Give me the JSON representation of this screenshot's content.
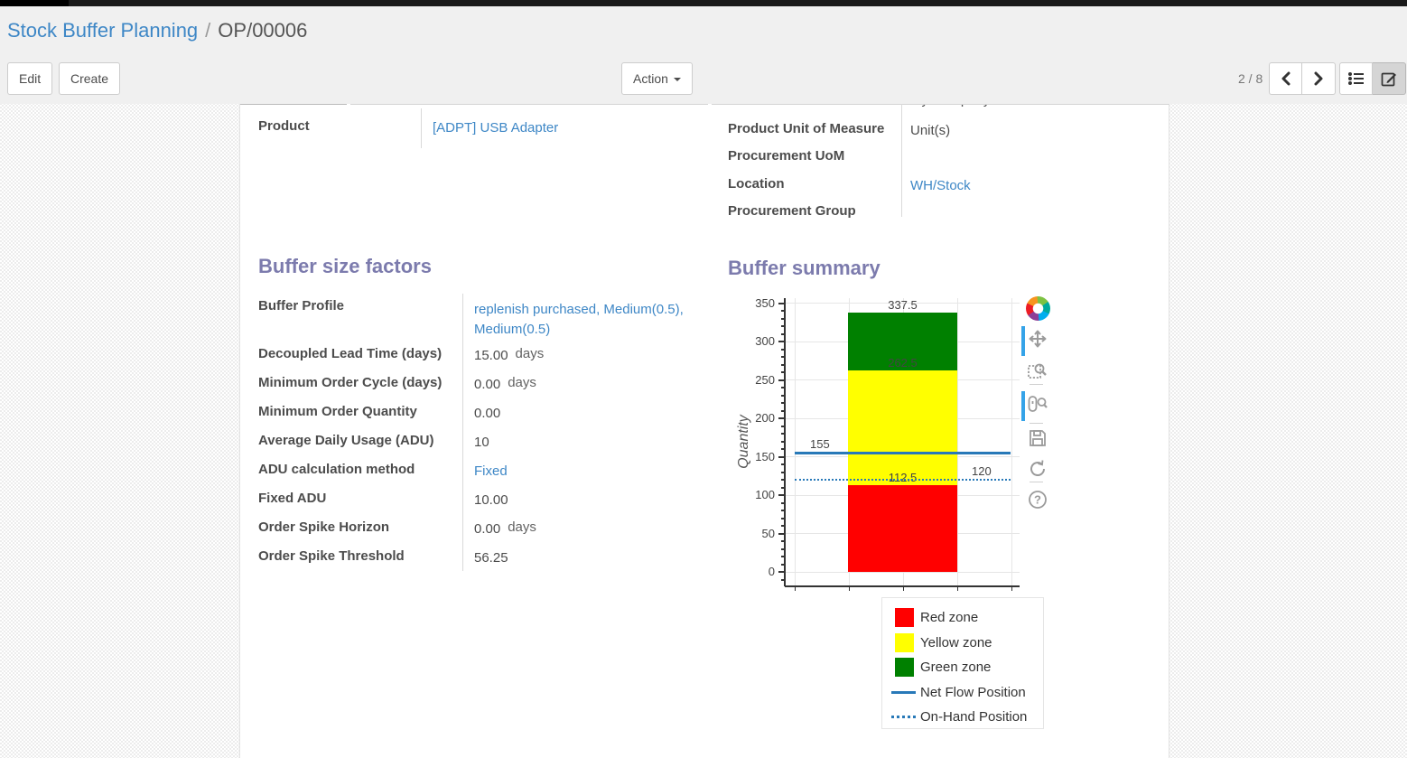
{
  "breadcrumb": {
    "parent": "Stock Buffer Planning",
    "separator": "/",
    "current": "OP/00006"
  },
  "controls": {
    "edit": "Edit",
    "create": "Create",
    "action": "Action",
    "pager": "2 / 8"
  },
  "clipped_row": {
    "value": "My Company"
  },
  "product_field": {
    "label": "Product",
    "value": "[ADPT] USB Adapter"
  },
  "right_fields": [
    {
      "label": "Product Unit of Measure",
      "value": "Unit(s)",
      "link": false
    },
    {
      "label": "Procurement UoM",
      "value": "",
      "link": false
    },
    {
      "label": "Location",
      "value": "WH/Stock",
      "link": true
    },
    {
      "label": "Procurement Group",
      "value": "",
      "link": false
    }
  ],
  "sections": {
    "factors": "Buffer size factors",
    "summary": "Buffer summary"
  },
  "factor_fields": [
    {
      "label": "Buffer Profile",
      "value": "replenish purchased, Medium(0.5), Medium(0.5)",
      "link": true
    },
    {
      "label": "Decoupled Lead Time (days)",
      "value": "15.00",
      "suffix": "days"
    },
    {
      "label": "Minimum Order Cycle (days)",
      "value": "0.00",
      "suffix": "days"
    },
    {
      "label": "Minimum Order Quantity",
      "value": "0.00"
    },
    {
      "label": "Average Daily Usage (ADU)",
      "value": "10"
    },
    {
      "label": "ADU calculation method",
      "value": "Fixed",
      "link": true
    },
    {
      "label": "Fixed ADU",
      "value": "10.00"
    },
    {
      "label": "Order Spike Horizon",
      "value": "0.00",
      "suffix": "days"
    },
    {
      "label": "Order Spike Threshold",
      "value": "56.25"
    }
  ],
  "chart_data": {
    "type": "bar",
    "title": "",
    "xlabel": "",
    "ylabel": "Quantity",
    "ylim": [
      0,
      350
    ],
    "yticks": [
      0,
      50,
      100,
      150,
      200,
      250,
      300,
      350
    ],
    "minor_tick_step": 10,
    "grid": true,
    "zones": [
      {
        "name": "Red zone",
        "color": "#FF0000",
        "from": 0,
        "to": 112.5,
        "label": "112.5"
      },
      {
        "name": "Yellow zone",
        "color": "#FFFF00",
        "from": 112.5,
        "to": 262.5,
        "label": "262.5"
      },
      {
        "name": "Green zone",
        "color": "#008000",
        "from": 262.5,
        "to": 337.5,
        "label": "337.5"
      }
    ],
    "lines": [
      {
        "name": "Net Flow Position",
        "value": 155,
        "dash": "solid",
        "color": "#2879b8",
        "label": "155",
        "label_side": "left"
      },
      {
        "name": "On-Hand Position",
        "value": 120,
        "dash": "dotted",
        "color": "#2879b8",
        "label": "120",
        "label_side": "right"
      }
    ],
    "legend": [
      {
        "label": "Red zone",
        "swatch": "square",
        "color": "#FF0000"
      },
      {
        "label": "Yellow zone",
        "swatch": "square",
        "color": "#FFFF00"
      },
      {
        "label": "Green zone",
        "swatch": "square",
        "color": "#008000"
      },
      {
        "label": "Net Flow Position",
        "swatch": "line",
        "color": "#2879b8"
      },
      {
        "label": "On-Hand Position",
        "swatch": "dotted",
        "color": "#2879b8"
      }
    ],
    "legend_position": "below"
  },
  "modebar": {
    "tools": [
      "bokeh-logo",
      "pan",
      "box-zoom",
      "wheel-zoom",
      "save",
      "reset",
      "help"
    ],
    "active": [
      "pan",
      "wheel-zoom"
    ]
  }
}
